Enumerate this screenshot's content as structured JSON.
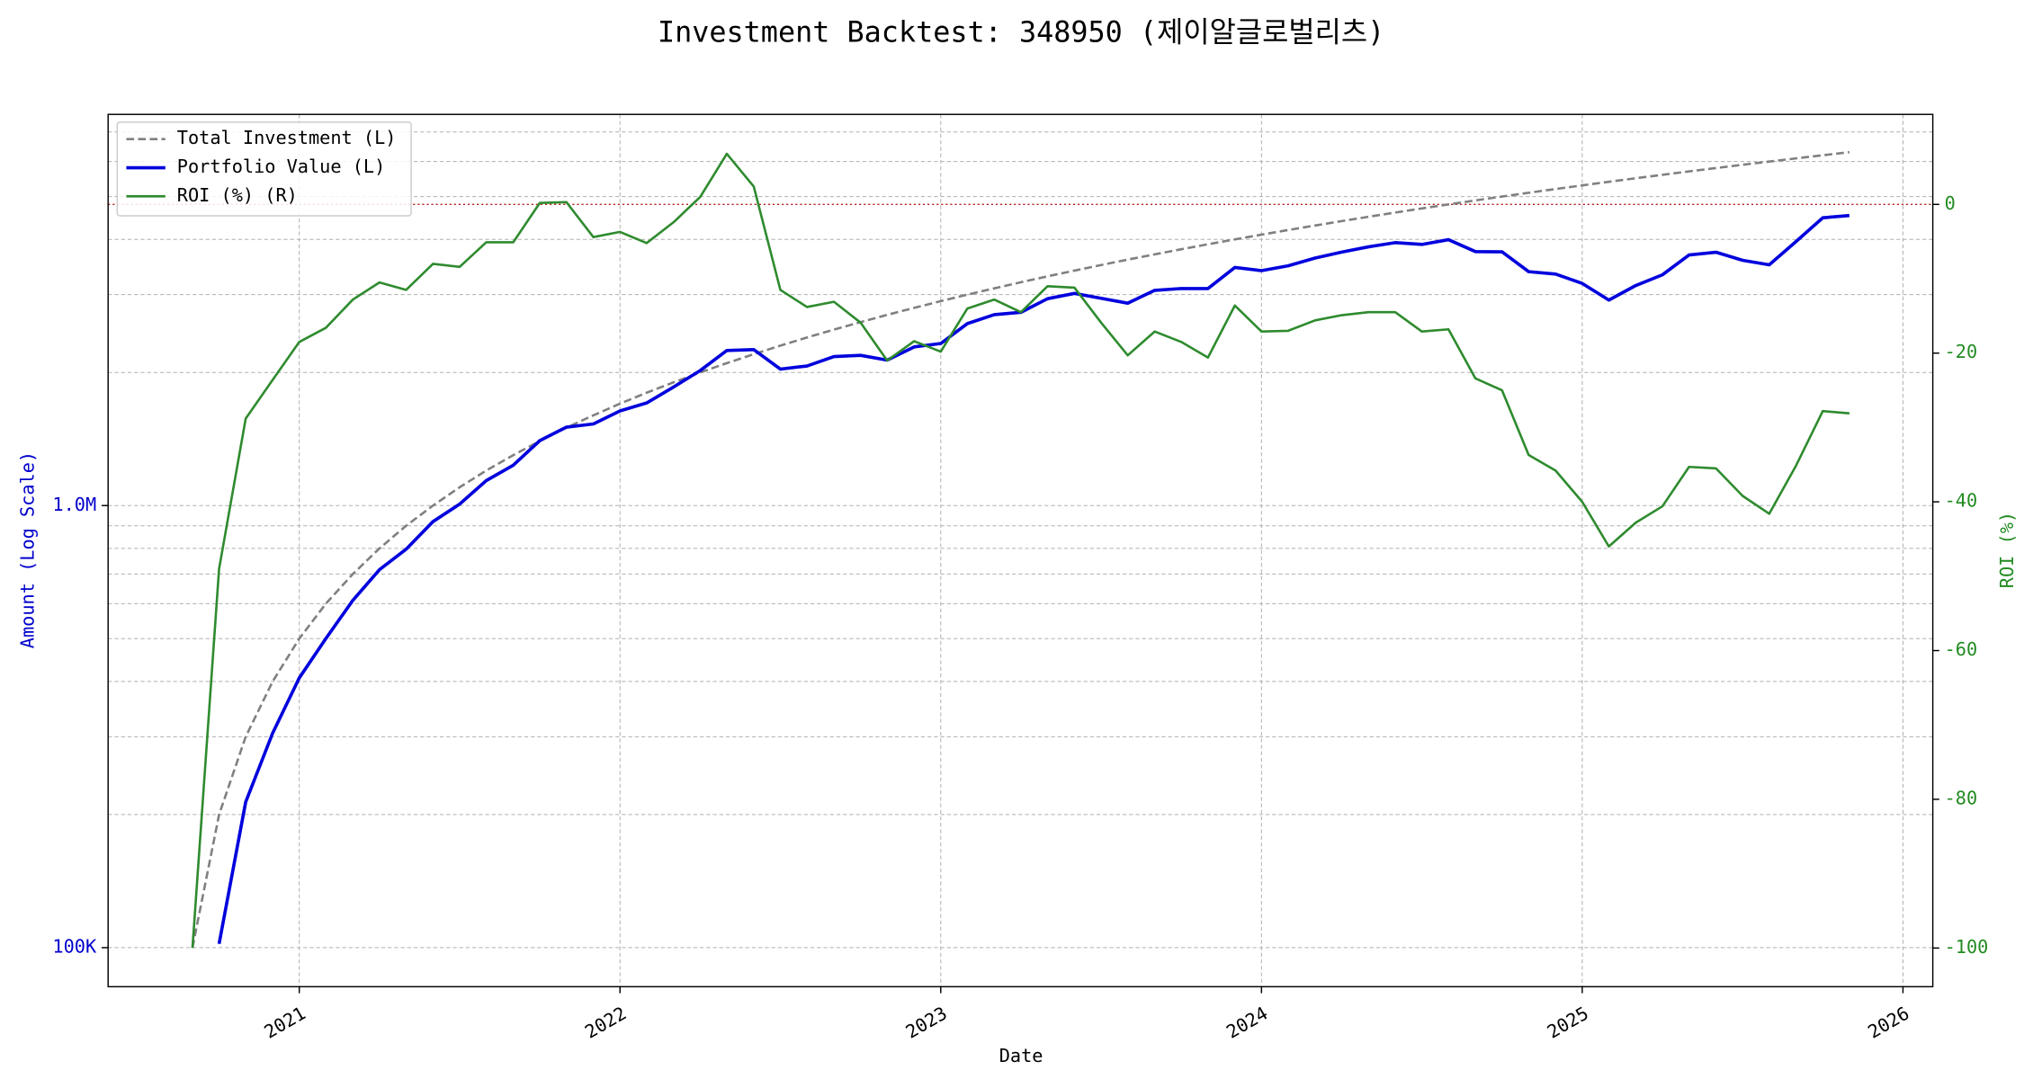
{
  "chart_data": {
    "type": "line",
    "title": "Investment Backtest: 348950 (제이알글로벌리츠)",
    "x_label": "Date",
    "y_label": "Amount (Log Scale)",
    "y2_label": "ROI (%)",
    "x": [
      2020.667,
      2020.75,
      2020.833,
      2020.917,
      2021.0,
      2021.083,
      2021.167,
      2021.25,
      2021.333,
      2021.417,
      2021.5,
      2021.583,
      2021.667,
      2021.75,
      2021.833,
      2021.917,
      2022.0,
      2022.083,
      2022.167,
      2022.25,
      2022.333,
      2022.417,
      2022.5,
      2022.583,
      2022.667,
      2022.75,
      2022.833,
      2022.917,
      2023.0,
      2023.083,
      2023.167,
      2023.25,
      2023.333,
      2023.417,
      2023.5,
      2023.583,
      2023.667,
      2023.75,
      2023.833,
      2023.917,
      2024.0,
      2024.083,
      2024.167,
      2024.25,
      2024.333,
      2024.417,
      2024.5,
      2024.583,
      2024.667,
      2024.75,
      2024.833,
      2024.917,
      2025.0,
      2025.083,
      2025.167,
      2025.25,
      2025.333,
      2025.417,
      2025.5,
      2025.583,
      2025.667,
      2025.75,
      2025.833
    ],
    "series": [
      {
        "name": "Total Investment (L)",
        "color": "#808080",
        "style": "dashed",
        "axis": "y",
        "values": [
          100000,
          200000,
          300000,
          400000,
          500000,
          600000,
          700000,
          800000,
          900000,
          1000000,
          1100000,
          1200000,
          1300000,
          1400000,
          1500000,
          1600000,
          1700000,
          1800000,
          1900000,
          2000000,
          2100000,
          2200000,
          2300000,
          2400000,
          2500000,
          2600000,
          2700000,
          2800000,
          2900000,
          3000000,
          3100000,
          3200000,
          3300000,
          3400000,
          3500000,
          3600000,
          3700000,
          3800000,
          3900000,
          4000000,
          4100000,
          4200000,
          4300000,
          4400000,
          4500000,
          4600000,
          4700000,
          4800000,
          4900000,
          5000000,
          5100000,
          5200000,
          5300000,
          5400000,
          5500000,
          5600000,
          5700000,
          5800000,
          5900000,
          6000000,
          6100000,
          6200000,
          6300000
        ]
      },
      {
        "name": "Portfolio Value (L)",
        "color": "#0000dd",
        "style": "solid",
        "axis": "y",
        "values": [
          null,
          102000,
          213600,
          305600,
          407500,
          500400,
          610400,
          716000,
          796500,
          920000,
          1007600,
          1138800,
          1233700,
          1402800,
          1504500,
          1529600,
          1637100,
          1706400,
          1854400,
          2020000,
          2242800,
          2252800,
          2035500,
          2068800,
          2172500,
          2186600,
          2133000,
          2284800,
          2325800,
          2580000,
          2703200,
          2736000,
          2937000,
          3019200,
          2943500,
          2869200,
          3067300,
          3097000,
          3096600,
          3456000,
          3398900,
          3486000,
          3629200,
          3744400,
          3847500,
          3933000,
          3896300,
          3993600,
          3753400,
          3750000,
          3381300,
          3338400,
          3180000,
          2916000,
          3146000,
          3326400,
          3687900,
          3741000,
          3587200,
          3504000,
          3958900,
          4476400,
          4529700
        ]
      },
      {
        "name": "ROI (%) (R)",
        "color": "#2e8b2e",
        "style": "solid",
        "axis": "y2",
        "values": [
          -100,
          -49,
          -28.8,
          -23.6,
          -18.5,
          -16.6,
          -12.8,
          -10.5,
          -11.5,
          -8.0,
          -8.4,
          -5.1,
          -5.1,
          0.2,
          0.3,
          -4.4,
          -3.7,
          -5.2,
          -2.4,
          1.0,
          6.8,
          2.4,
          -11.5,
          -13.8,
          -13.1,
          -15.9,
          -21.0,
          -18.4,
          -19.8,
          -14.0,
          -12.8,
          -14.5,
          -11.0,
          -11.2,
          -15.9,
          -20.3,
          -17.1,
          -18.5,
          -20.6,
          -13.6,
          -17.1,
          -17.0,
          -15.6,
          -14.9,
          -14.5,
          -14.5,
          -17.1,
          -16.8,
          -23.4,
          -25.0,
          -33.7,
          -35.8,
          -40.0,
          -46.0,
          -42.8,
          -40.6,
          -35.3,
          -35.5,
          -39.2,
          -41.6,
          -35.1,
          -27.8,
          -28.1
        ]
      }
    ],
    "xlim": [
      2020.404,
      2026.093
    ],
    "xticks": [
      2021,
      2022,
      2023,
      2024,
      2025,
      2026
    ],
    "ylim": [
      81600,
      7670000
    ],
    "y_scale": "log",
    "yticks": [
      {
        "value": 100000,
        "label": "100K"
      },
      {
        "value": 1000000,
        "label": "1.0M"
      }
    ],
    "y_minor_ticks": [
      200000,
      300000,
      400000,
      500000,
      600000,
      700000,
      800000,
      900000,
      2000000,
      3000000,
      4000000,
      5000000,
      6000000,
      7000000
    ],
    "y_color": "#0000cc",
    "y2lim": [
      -105.2,
      12.1
    ],
    "y2ticks": [
      0,
      -20,
      -40,
      -60,
      -80,
      -100
    ],
    "y2_color": "#228b22",
    "y2_ref_line": {
      "value": 0,
      "color": "#b22222"
    },
    "grid": true,
    "legend": "upper left"
  }
}
